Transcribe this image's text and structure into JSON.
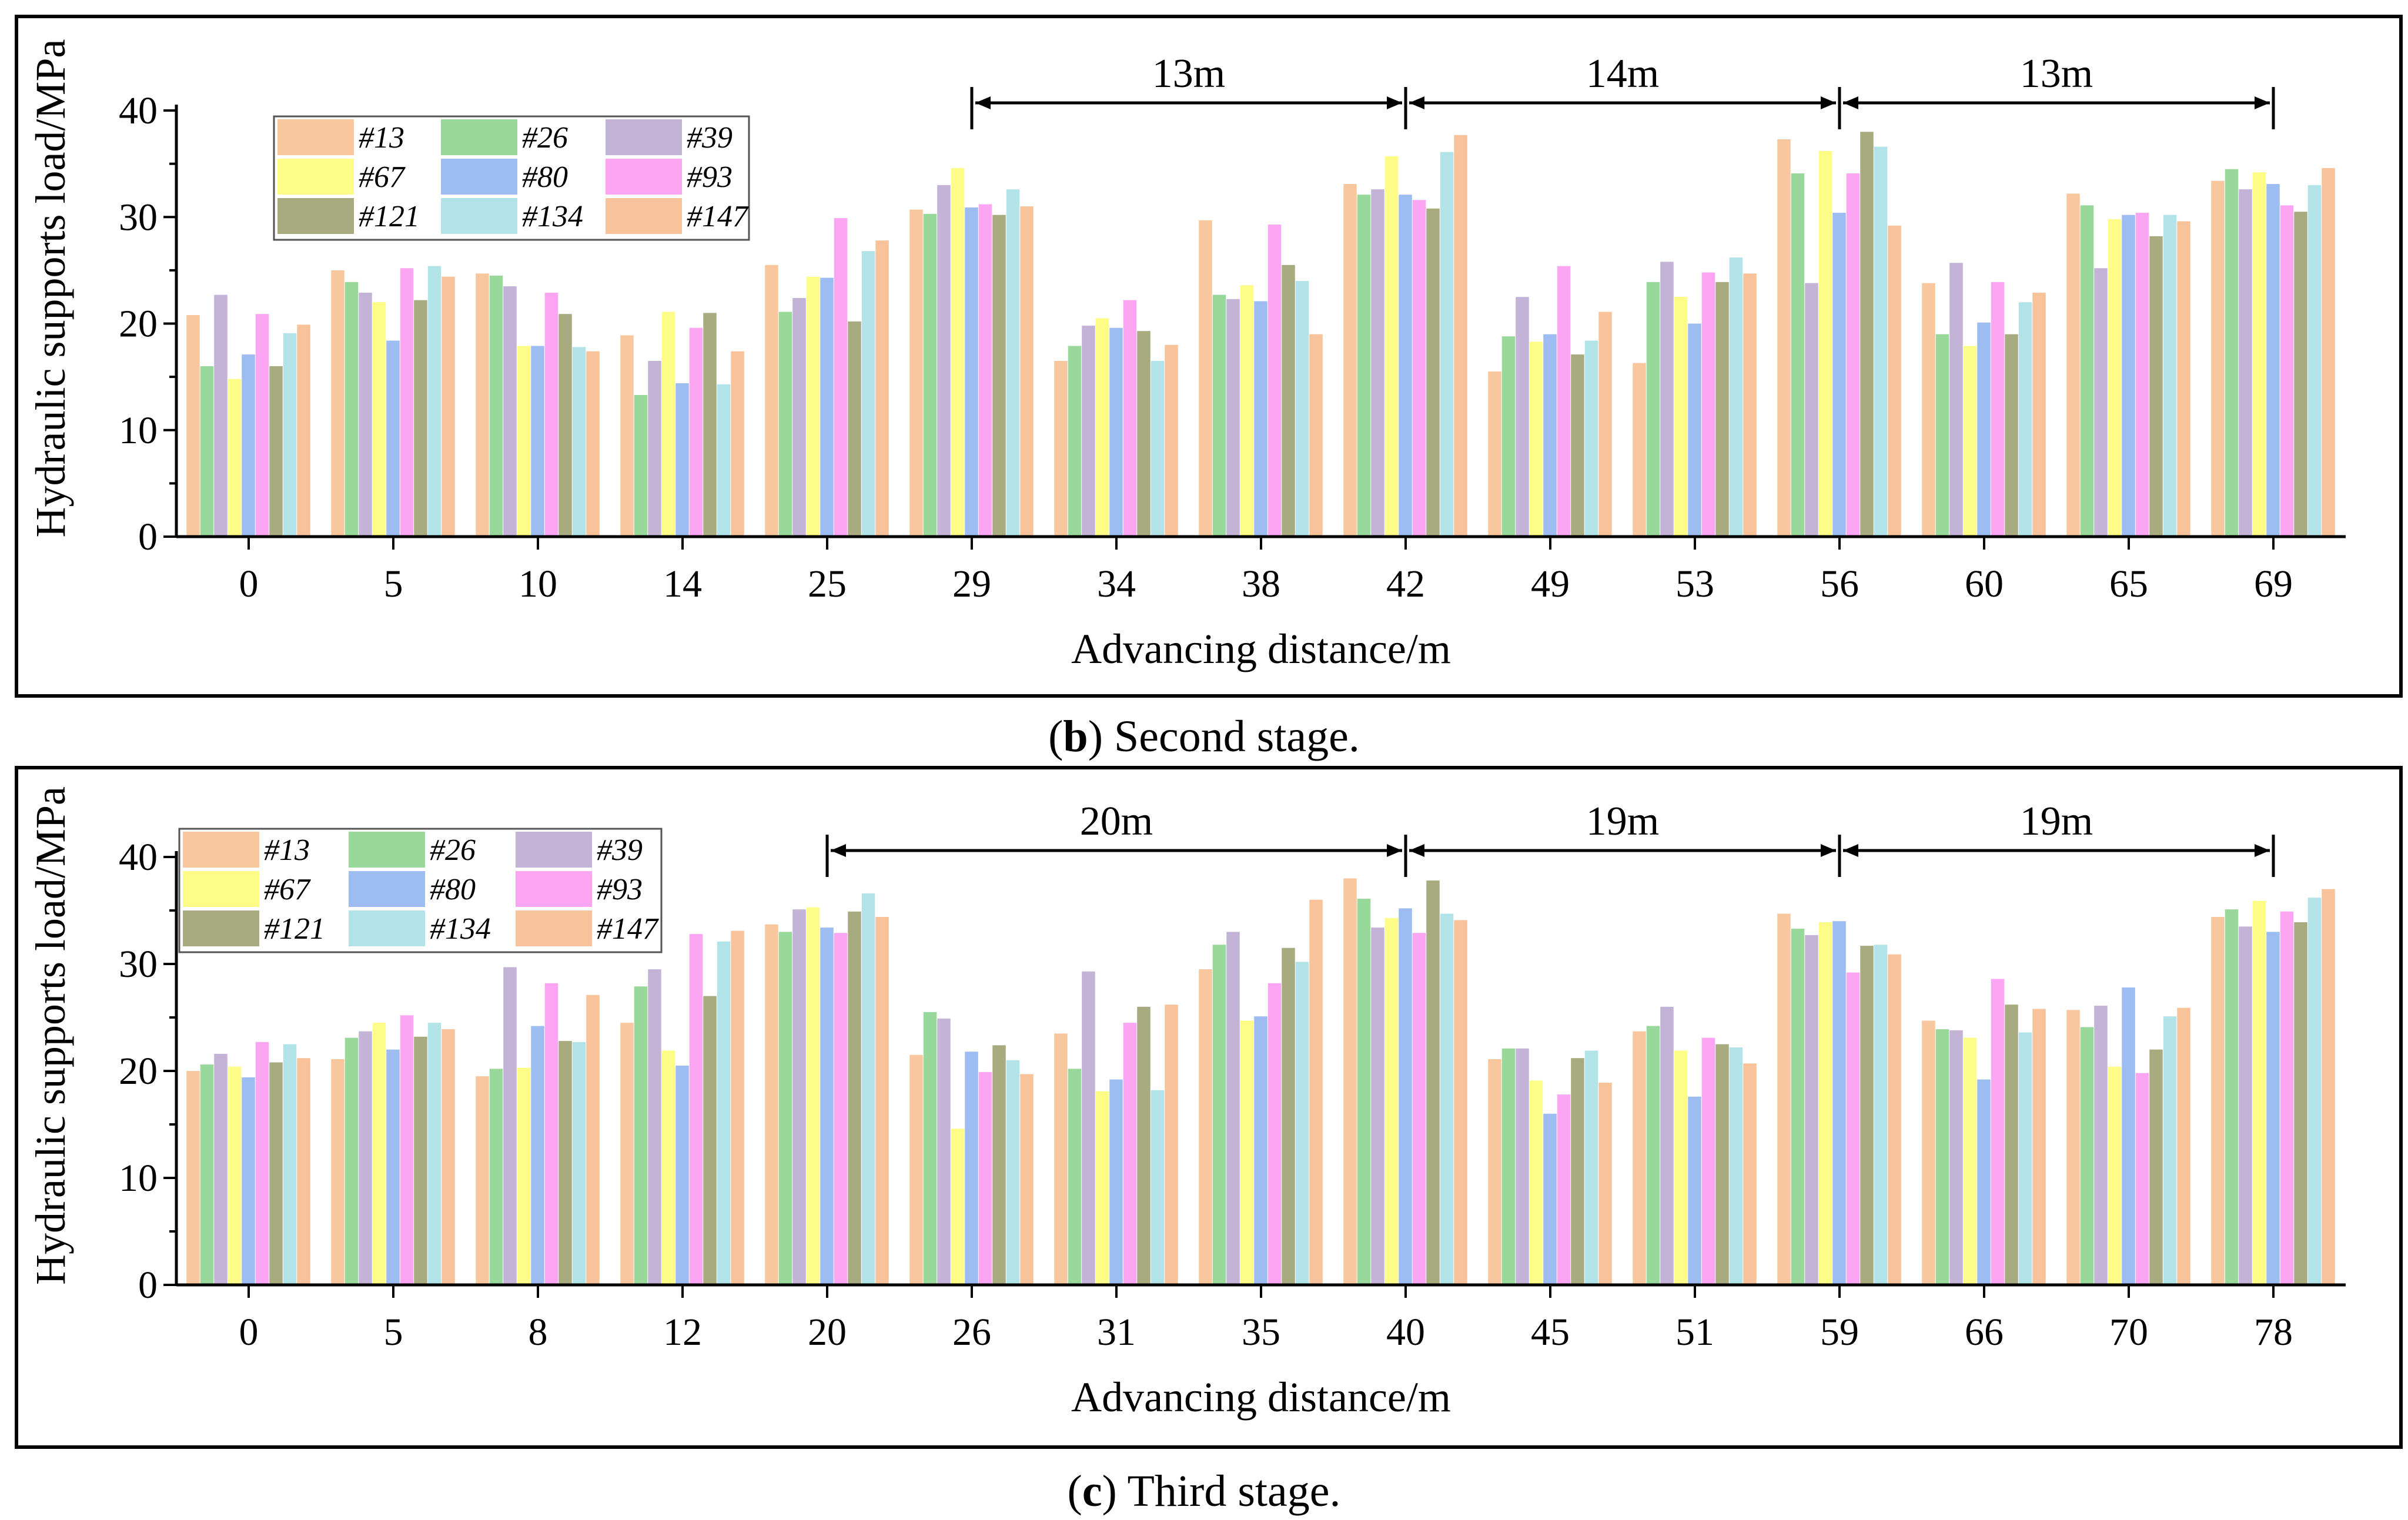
{
  "colors": {
    "#13": "#F8C79D",
    "#26": "#98D89A",
    "#39": "#C3B3D7",
    "#67": "#FCFC86",
    "#80": "#9CBCF2",
    "#93": "#FBA5F3",
    "#121": "#A8AA80",
    "#134": "#B2E3E8",
    "#147": "#F8C39A"
  },
  "chart_data": [
    {
      "type": "bar",
      "panel": "b",
      "caption_letter": "b",
      "caption_text": " Second stage.",
      "xlabel": "Advancing distance/m",
      "ylabel": "Hydraulic supports load/MPa",
      "ylim": [
        0,
        40
      ],
      "yticks": [
        "0",
        "10",
        "20",
        "30",
        "40"
      ],
      "legend_placement": "top-left",
      "categories": [
        "0",
        "5",
        "10",
        "14",
        "25",
        "29",
        "34",
        "38",
        "42",
        "49",
        "53",
        "56",
        "60",
        "65",
        "69"
      ],
      "series": [
        {
          "name": "#13",
          "values": [
            20.8,
            25.0,
            24.7,
            18.9,
            25.5,
            30.7,
            16.5,
            29.7,
            33.1,
            15.5,
            16.3,
            37.3,
            23.8,
            32.2,
            33.4
          ]
        },
        {
          "name": "#26",
          "values": [
            16.0,
            23.9,
            24.5,
            13.3,
            21.1,
            30.3,
            17.9,
            22.7,
            32.1,
            18.8,
            23.9,
            34.1,
            19.0,
            31.1,
            34.5
          ]
        },
        {
          "name": "#39",
          "values": [
            22.7,
            22.9,
            23.5,
            16.5,
            22.4,
            33.0,
            19.8,
            22.3,
            32.6,
            22.5,
            25.8,
            23.8,
            25.7,
            25.2,
            32.6
          ]
        },
        {
          "name": "#67",
          "values": [
            14.8,
            22.0,
            17.9,
            21.1,
            24.4,
            34.6,
            20.5,
            23.6,
            35.7,
            18.3,
            22.5,
            36.2,
            17.9,
            29.8,
            34.2
          ]
        },
        {
          "name": "#80",
          "values": [
            17.1,
            18.4,
            17.9,
            14.4,
            24.3,
            30.9,
            19.6,
            22.1,
            32.1,
            19.0,
            20.0,
            30.4,
            20.1,
            30.2,
            33.1
          ]
        },
        {
          "name": "#93",
          "values": [
            20.9,
            25.2,
            22.9,
            19.6,
            29.9,
            31.2,
            22.2,
            29.3,
            31.6,
            25.4,
            24.8,
            34.1,
            23.9,
            30.4,
            31.1
          ]
        },
        {
          "name": "#121",
          "values": [
            16.0,
            22.2,
            20.9,
            21.0,
            20.2,
            30.2,
            19.3,
            25.5,
            30.8,
            17.1,
            23.9,
            38.0,
            19.0,
            28.2,
            30.5
          ]
        },
        {
          "name": "#134",
          "values": [
            19.1,
            25.4,
            17.8,
            14.3,
            26.8,
            32.6,
            16.5,
            24.0,
            36.1,
            18.4,
            26.2,
            36.6,
            22.0,
            30.2,
            33.0
          ]
        },
        {
          "name": "#147",
          "values": [
            19.9,
            24.4,
            17.4,
            17.4,
            27.8,
            31.0,
            18.0,
            19.0,
            37.7,
            21.1,
            24.7,
            29.2,
            22.9,
            29.6,
            34.6
          ]
        }
      ],
      "spans": [
        {
          "label": "13m",
          "from": "29",
          "to": "42"
        },
        {
          "label": "14m",
          "from": "42",
          "to": "56"
        },
        {
          "label": "13m",
          "from": "56",
          "to": "69"
        }
      ]
    },
    {
      "type": "bar",
      "panel": "c",
      "caption_letter": "c",
      "caption_text": " Third stage.",
      "xlabel": "Advancing distance/m",
      "ylabel": "Hydraulic supports load/MPa",
      "ylim": [
        0,
        40
      ],
      "yticks": [
        "0",
        "10",
        "20",
        "30",
        "40"
      ],
      "legend_placement": "top-left",
      "categories": [
        "0",
        "5",
        "8",
        "12",
        "20",
        "26",
        "31",
        "35",
        "40",
        "45",
        "51",
        "59",
        "66",
        "70",
        "78"
      ],
      "series": [
        {
          "name": "#13",
          "values": [
            20.0,
            21.1,
            19.5,
            24.5,
            33.7,
            21.5,
            23.5,
            29.5,
            38.0,
            21.1,
            23.7,
            34.7,
            24.7,
            25.7,
            34.4
          ]
        },
        {
          "name": "#26",
          "values": [
            20.6,
            23.1,
            20.2,
            27.9,
            33.0,
            25.5,
            20.2,
            31.8,
            36.1,
            22.1,
            24.2,
            33.3,
            23.9,
            24.1,
            35.1
          ]
        },
        {
          "name": "#39",
          "values": [
            21.6,
            23.7,
            29.7,
            29.5,
            35.1,
            24.9,
            29.3,
            33.0,
            33.4,
            22.1,
            26.0,
            32.7,
            23.8,
            26.1,
            33.5
          ]
        },
        {
          "name": "#67",
          "values": [
            20.4,
            24.5,
            20.3,
            21.9,
            35.3,
            14.6,
            18.1,
            24.7,
            34.3,
            19.1,
            21.9,
            33.9,
            23.1,
            20.4,
            35.9
          ]
        },
        {
          "name": "#80",
          "values": [
            19.4,
            22.0,
            24.2,
            20.5,
            33.4,
            21.8,
            19.2,
            25.1,
            35.2,
            16.0,
            17.6,
            34.0,
            19.2,
            27.8,
            33.0
          ]
        },
        {
          "name": "#93",
          "values": [
            22.7,
            25.2,
            28.2,
            32.8,
            32.9,
            19.9,
            24.5,
            28.2,
            32.9,
            17.8,
            23.1,
            29.2,
            28.6,
            19.8,
            34.9
          ]
        },
        {
          "name": "#121",
          "values": [
            20.8,
            23.2,
            22.8,
            27.0,
            34.9,
            22.4,
            26.0,
            31.5,
            37.8,
            21.2,
            22.5,
            31.7,
            26.2,
            22.0,
            33.9
          ]
        },
        {
          "name": "#134",
          "values": [
            22.5,
            24.5,
            22.7,
            32.1,
            36.6,
            21.0,
            18.2,
            30.2,
            34.7,
            21.9,
            22.2,
            31.8,
            23.6,
            25.1,
            36.2
          ]
        },
        {
          "name": "#147",
          "values": [
            21.2,
            23.9,
            27.1,
            33.1,
            34.4,
            19.7,
            26.2,
            36.0,
            34.1,
            18.9,
            20.7,
            30.9,
            25.8,
            25.9,
            37.0
          ]
        }
      ],
      "spans": [
        {
          "label": "20m",
          "from": "20",
          "to": "40"
        },
        {
          "label": "19m",
          "from": "40",
          "to": "59"
        },
        {
          "label": "19m",
          "from": "59",
          "to": "78"
        }
      ]
    }
  ]
}
